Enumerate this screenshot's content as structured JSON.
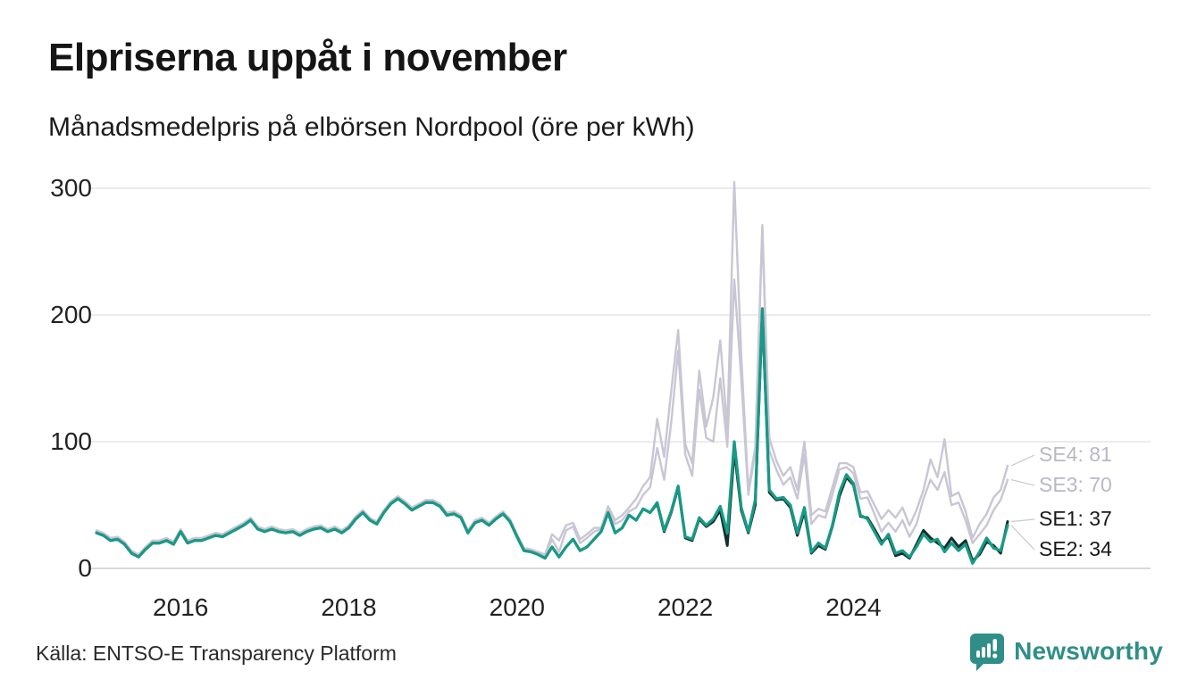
{
  "header": {
    "title": "Elpriserna uppåt i november",
    "subtitle": "Månadsmedelpris på elbörsen Nordpool (öre per kWh)"
  },
  "footer": {
    "source": "Källa: ENTSO-E Transparency Platform",
    "brand_name": "Newsworthy"
  },
  "colors": {
    "se2_teal": "#179a87",
    "se1_dark": "#12302a",
    "gray_series": "#c9c6d4",
    "gray_label": "#bab7c7",
    "dark_label": "#1a1a1a",
    "gridline": "#e6e6ea",
    "zero_line": "#d9d9dd",
    "leader_line": "#c9c9cd",
    "brand_teal": "#2f8f88"
  },
  "chart_data": {
    "type": "line",
    "title": "Elpriserna uppåt i november",
    "subtitle": "Månadsmedelpris på elbörsen Nordpool (öre per kWh)",
    "unit": "öre per kWh",
    "grid": "horizontal",
    "legend_position": "end-of-line-labels",
    "ylim": [
      0,
      310
    ],
    "yticks": [
      0,
      100,
      200,
      300
    ],
    "xticks": [
      {
        "index": 12,
        "label": "2016"
      },
      {
        "index": 36,
        "label": "2018"
      },
      {
        "index": 60,
        "label": "2020"
      },
      {
        "index": 84,
        "label": "2022"
      },
      {
        "index": 108,
        "label": "2024"
      }
    ],
    "categories": [
      "2015-01",
      "2015-02",
      "2015-03",
      "2015-04",
      "2015-05",
      "2015-06",
      "2015-07",
      "2015-08",
      "2015-09",
      "2015-10",
      "2015-11",
      "2015-12",
      "2016-01",
      "2016-02",
      "2016-03",
      "2016-04",
      "2016-05",
      "2016-06",
      "2016-07",
      "2016-08",
      "2016-09",
      "2016-10",
      "2016-11",
      "2016-12",
      "2017-01",
      "2017-02",
      "2017-03",
      "2017-04",
      "2017-05",
      "2017-06",
      "2017-07",
      "2017-08",
      "2017-09",
      "2017-10",
      "2017-11",
      "2017-12",
      "2018-01",
      "2018-02",
      "2018-03",
      "2018-04",
      "2018-05",
      "2018-06",
      "2018-07",
      "2018-08",
      "2018-09",
      "2018-10",
      "2018-11",
      "2018-12",
      "2019-01",
      "2019-02",
      "2019-03",
      "2019-04",
      "2019-05",
      "2019-06",
      "2019-07",
      "2019-08",
      "2019-09",
      "2019-10",
      "2019-11",
      "2019-12",
      "2020-01",
      "2020-02",
      "2020-03",
      "2020-04",
      "2020-05",
      "2020-06",
      "2020-07",
      "2020-08",
      "2020-09",
      "2020-10",
      "2020-11",
      "2020-12",
      "2021-01",
      "2021-02",
      "2021-03",
      "2021-04",
      "2021-05",
      "2021-06",
      "2021-07",
      "2021-08",
      "2021-09",
      "2021-10",
      "2021-11",
      "2021-12",
      "2022-01",
      "2022-02",
      "2022-03",
      "2022-04",
      "2022-05",
      "2022-06",
      "2022-07",
      "2022-08",
      "2022-09",
      "2022-10",
      "2022-11",
      "2022-12",
      "2023-01",
      "2023-02",
      "2023-03",
      "2023-04",
      "2023-05",
      "2023-06",
      "2023-07",
      "2023-08",
      "2023-09",
      "2023-10",
      "2023-11",
      "2023-12",
      "2024-01",
      "2024-02",
      "2024-03",
      "2024-04",
      "2024-05",
      "2024-06",
      "2024-07",
      "2024-08",
      "2024-09",
      "2024-10",
      "2024-11",
      "2024-12",
      "2025-01",
      "2025-02",
      "2025-03",
      "2025-04",
      "2025-05",
      "2025-06",
      "2025-07",
      "2025-08",
      "2025-09",
      "2025-10",
      "2025-11"
    ],
    "series": [
      {
        "name": "SE3",
        "color": "#c9c6d4",
        "width": 2.4,
        "end_label": "SE3: 70",
        "label_color": "#bab7c7",
        "values": [
          29,
          27,
          23,
          24,
          20,
          13,
          10,
          16,
          21,
          21,
          23,
          20,
          30,
          21,
          23,
          23,
          25,
          27,
          26,
          29,
          32,
          35,
          39,
          32,
          30,
          32,
          30,
          29,
          30,
          27,
          30,
          32,
          33,
          30,
          32,
          29,
          33,
          40,
          45,
          39,
          36,
          45,
          52,
          56,
          52,
          47,
          50,
          53,
          53,
          50,
          43,
          44,
          41,
          29,
          37,
          39,
          35,
          40,
          44,
          38,
          26,
          15,
          14,
          12,
          10,
          23,
          13,
          30,
          33,
          20,
          24,
          29,
          31,
          47,
          35,
          38,
          45,
          48,
          58,
          64,
          95,
          70,
          115,
          172,
          90,
          73,
          141,
          103,
          100,
          150,
          96,
          228,
          150,
          58,
          92,
          268,
          93,
          78,
          66,
          72,
          55,
          90,
          35,
          42,
          40,
          58,
          78,
          80,
          75,
          55,
          56,
          43,
          29,
          36,
          29,
          38,
          25,
          35,
          55,
          70,
          62,
          76,
          50,
          52,
          38,
          20,
          27,
          34,
          46,
          54,
          70
        ]
      },
      {
        "name": "SE4",
        "color": "#c9c6d4",
        "width": 2.4,
        "end_label": "SE4: 81",
        "label_color": "#bab7c7",
        "values": [
          30,
          28,
          24,
          25,
          21,
          14,
          11,
          17,
          22,
          22,
          24,
          21,
          31,
          22,
          24,
          24,
          26,
          28,
          27,
          30,
          33,
          36,
          40,
          33,
          31,
          33,
          31,
          30,
          31,
          28,
          31,
          33,
          34,
          31,
          33,
          30,
          34,
          41,
          46,
          40,
          37,
          46,
          53,
          57,
          53,
          48,
          51,
          54,
          54,
          51,
          44,
          45,
          42,
          30,
          38,
          40,
          36,
          41,
          45,
          39,
          27,
          16,
          15,
          13,
          11,
          27,
          22,
          34,
          36,
          23,
          27,
          32,
          32,
          49,
          38,
          42,
          48,
          55,
          65,
          72,
          118,
          88,
          140,
          188,
          98,
          83,
          156,
          112,
          135,
          180,
          110,
          305,
          168,
          62,
          96,
          271,
          103,
          85,
          73,
          80,
          62,
          100,
          42,
          47,
          45,
          64,
          83,
          83,
          80,
          60,
          61,
          50,
          39,
          46,
          40,
          48,
          34,
          46,
          62,
          86,
          72,
          102,
          57,
          60,
          45,
          24,
          35,
          43,
          56,
          62,
          81
        ]
      },
      {
        "name": "SE1",
        "color": "#12302a",
        "width": 3,
        "end_label": "SE1: 37",
        "label_color": "#1a1a1a",
        "values": [
          28,
          26,
          22,
          23,
          19,
          12,
          9,
          15,
          20,
          20,
          22,
          19,
          29,
          20,
          22,
          22,
          24,
          26,
          25,
          28,
          31,
          34,
          38,
          31,
          29,
          31,
          29,
          28,
          29,
          26,
          29,
          31,
          32,
          29,
          31,
          28,
          32,
          39,
          44,
          38,
          35,
          44,
          51,
          55,
          51,
          46,
          49,
          52,
          52,
          49,
          42,
          43,
          40,
          28,
          36,
          38,
          34,
          39,
          43,
          37,
          25,
          14,
          13,
          11,
          8,
          17,
          9,
          17,
          23,
          14,
          17,
          23,
          29,
          44,
          28,
          32,
          42,
          38,
          47,
          44,
          51,
          29,
          44,
          64,
          24,
          22,
          39,
          33,
          37,
          46,
          18,
          93,
          46,
          28,
          50,
          203,
          60,
          54,
          55,
          48,
          26,
          45,
          12,
          18,
          15,
          33,
          57,
          72,
          66,
          41,
          40,
          31,
          21,
          25,
          10,
          12,
          8,
          19,
          30,
          24,
          20,
          16,
          24,
          17,
          22,
          6,
          11,
          21,
          18,
          12,
          37
        ]
      },
      {
        "name": "SE2",
        "color": "#179a87",
        "width": 3.2,
        "end_label": "SE2: 34",
        "label_color": "#1a1a1a",
        "values": [
          28,
          26,
          22,
          23,
          19,
          12,
          9,
          15,
          20,
          20,
          22,
          19,
          29,
          20,
          22,
          22,
          24,
          26,
          25,
          28,
          31,
          34,
          38,
          31,
          29,
          31,
          29,
          28,
          29,
          26,
          29,
          31,
          32,
          29,
          31,
          28,
          32,
          39,
          44,
          38,
          35,
          44,
          51,
          55,
          51,
          46,
          49,
          52,
          52,
          49,
          42,
          43,
          40,
          28,
          36,
          38,
          34,
          39,
          43,
          37,
          25,
          14,
          13,
          11,
          8,
          17,
          9,
          17,
          23,
          14,
          17,
          23,
          29,
          44,
          28,
          32,
          42,
          38,
          47,
          44,
          52,
          30,
          45,
          65,
          25,
          23,
          40,
          34,
          39,
          49,
          28,
          100,
          48,
          29,
          54,
          205,
          62,
          55,
          56,
          50,
          28,
          48,
          13,
          20,
          16,
          34,
          60,
          74,
          67,
          42,
          39,
          29,
          19,
          27,
          12,
          14,
          9,
          17,
          27,
          21,
          23,
          13,
          20,
          14,
          19,
          4,
          13,
          24,
          16,
          14,
          34
        ]
      }
    ]
  }
}
